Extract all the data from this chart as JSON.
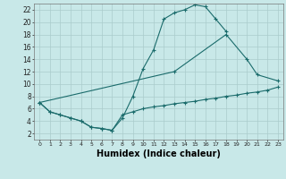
{
  "background_color": "#c8e8e8",
  "grid_color": "#aacccc",
  "line_color": "#1a6b6b",
  "xlabel": "Humidex (Indice chaleur)",
  "xlabel_fontsize": 7,
  "yticks": [
    2,
    4,
    6,
    8,
    10,
    12,
    14,
    16,
    18,
    20,
    22
  ],
  "xticks": [
    0,
    1,
    2,
    3,
    4,
    5,
    6,
    7,
    8,
    9,
    10,
    11,
    12,
    13,
    14,
    15,
    16,
    17,
    18,
    19,
    20,
    21,
    22,
    23
  ],
  "xlim": [
    -0.5,
    23.5
  ],
  "ylim": [
    1.0,
    23.0
  ],
  "curve1_x": [
    0,
    1,
    2,
    3,
    4,
    5,
    6,
    7,
    8,
    9,
    10,
    11,
    12,
    13,
    14,
    15,
    16,
    17,
    18
  ],
  "curve1_y": [
    7.0,
    5.5,
    5.0,
    4.5,
    4.0,
    3.0,
    2.8,
    2.5,
    4.5,
    8.0,
    12.5,
    15.5,
    20.5,
    21.5,
    22.0,
    22.8,
    22.5,
    20.5,
    18.5
  ],
  "curve2_x": [
    0,
    13,
    18,
    20,
    21,
    23
  ],
  "curve2_y": [
    7.0,
    12.0,
    18.0,
    14.0,
    11.5,
    10.5
  ],
  "curve3_x": [
    0,
    1,
    2,
    3,
    4,
    5,
    6,
    7,
    8,
    9,
    10,
    11,
    12,
    13,
    14,
    15,
    16,
    17,
    18,
    19,
    20,
    21,
    22,
    23
  ],
  "curve3_y": [
    7.0,
    5.5,
    5.0,
    4.5,
    4.0,
    3.0,
    2.8,
    2.5,
    5.0,
    5.5,
    6.0,
    6.3,
    6.5,
    6.8,
    7.0,
    7.2,
    7.5,
    7.7,
    8.0,
    8.2,
    8.5,
    8.7,
    9.0,
    9.5
  ]
}
